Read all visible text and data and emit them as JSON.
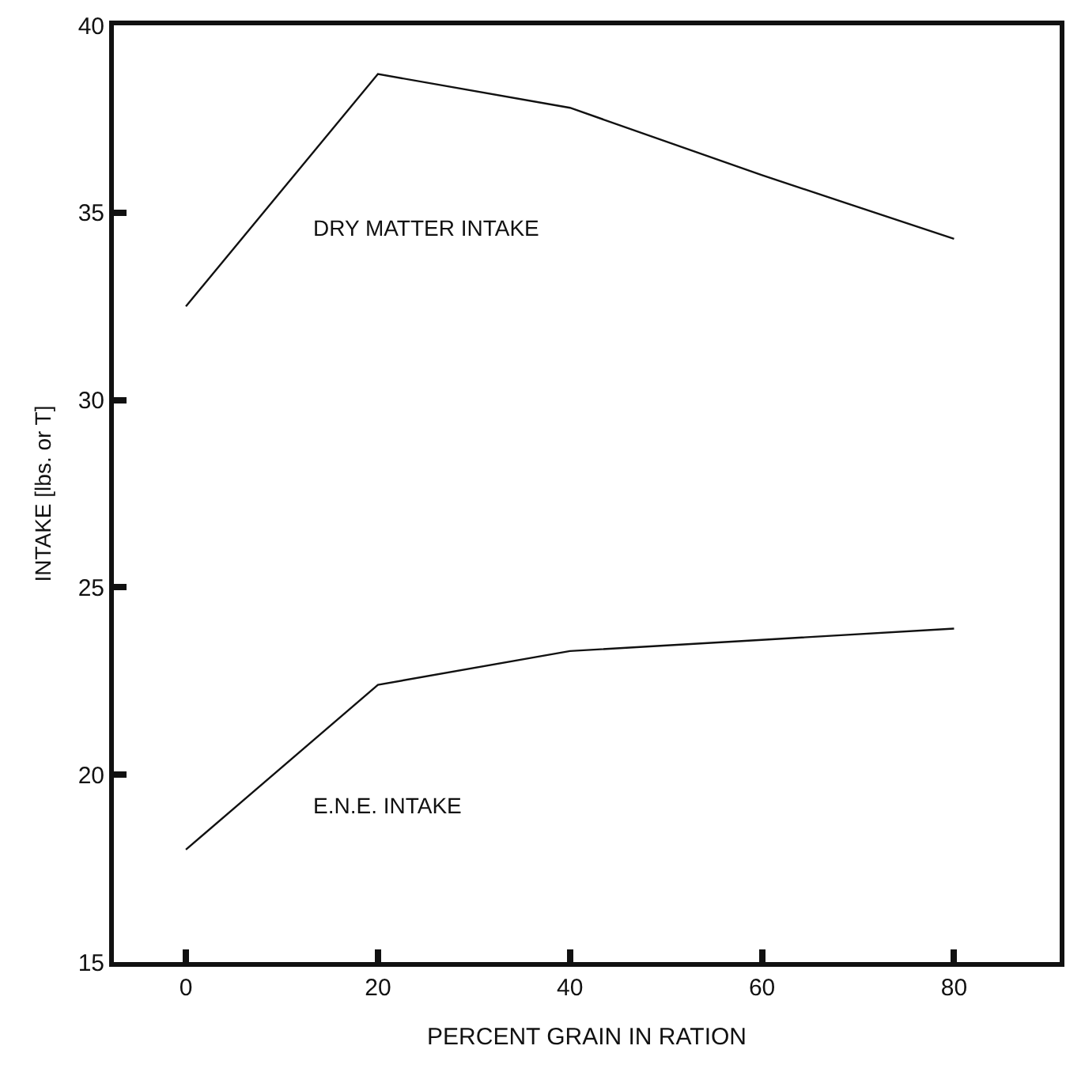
{
  "chart_data": {
    "type": "line",
    "xlabel": "PERCENT GRAIN IN RATION",
    "ylabel": "INTAKE [lbs. or T]",
    "x": [
      0,
      20,
      40,
      60,
      80
    ],
    "series": [
      {
        "name": "DRY MATTER INTAKE",
        "color": "#111111",
        "values": [
          32.5,
          38.7,
          37.8,
          36.0,
          34.3
        ]
      },
      {
        "name": "E.N.E. INTAKE",
        "color": "#111111",
        "values": [
          18.0,
          22.4,
          23.3,
          23.6,
          23.9
        ]
      }
    ],
    "xlim": [
      -7.5,
      91
    ],
    "xticks": [
      0,
      20,
      40,
      60,
      80
    ],
    "ylim": [
      15,
      40
    ],
    "yticks": [
      15,
      20,
      25,
      30,
      35,
      40
    ],
    "grid": false,
    "legend": false,
    "marker": "none",
    "line_style": "solid"
  }
}
